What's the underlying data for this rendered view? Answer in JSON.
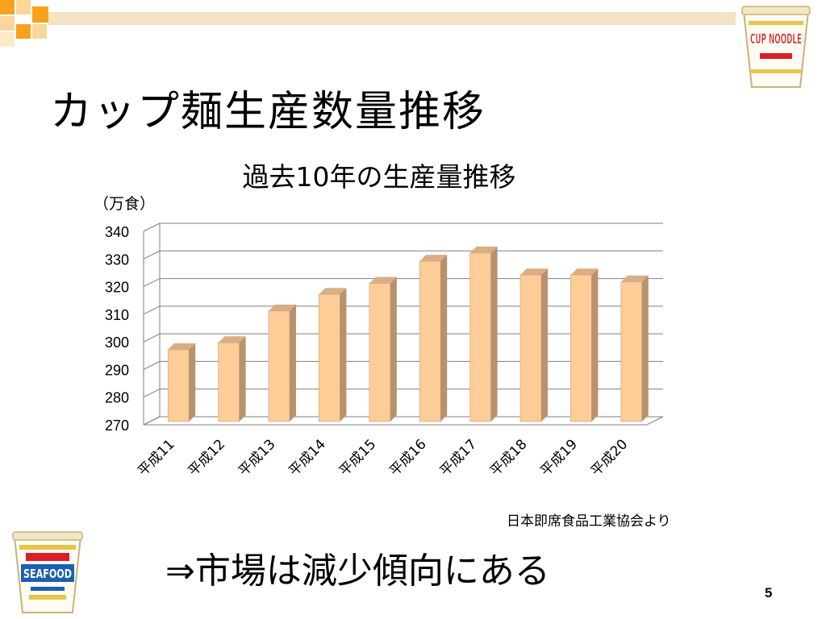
{
  "slide": {
    "title": "カップ麺生産数量推移",
    "unit_label": "（万食）",
    "source_note": "日本即席食品工業協会より",
    "conclusion": "⇒市場は減少傾向にある",
    "page_number": "5",
    "colors": {
      "accent_bar": "#f4e3c3",
      "square_orange": "#f7a21c",
      "square_light": "#f9d79a",
      "bar_front": "#fdcc97",
      "bar_side": "#b8916d",
      "bar_top": "#d9ad85",
      "grid": "#7f7f7f"
    },
    "logos": {
      "top_right": {
        "icon": "cup-noodle-logo-icon",
        "text": "CUP NOODLE"
      },
      "bottom_left": {
        "icon": "seafood-noodle-logo-icon",
        "text": "SEAFOOD"
      }
    }
  },
  "chart_data": {
    "type": "bar",
    "title": "過去10年の生産量推移",
    "xlabel": "",
    "ylabel": "（万食）",
    "categories": [
      "平成11",
      "平成12",
      "平成13",
      "平成14",
      "平成15",
      "平成16",
      "平成17",
      "平成18",
      "平成19",
      "平成20"
    ],
    "values": [
      296,
      298.5,
      310,
      316,
      320,
      328,
      331,
      323,
      323,
      320.5
    ],
    "ylim": [
      270,
      340
    ],
    "yticks": [
      "270",
      "280",
      "290",
      "300",
      "310",
      "320",
      "330",
      "340"
    ],
    "grid": true,
    "legend": "none",
    "style": "3d"
  }
}
